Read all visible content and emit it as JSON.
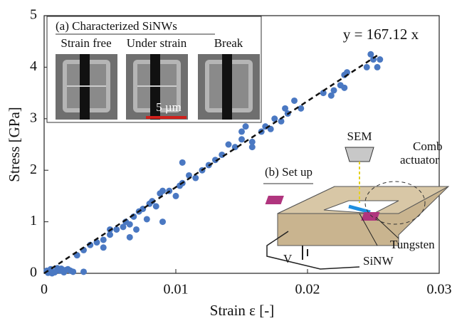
{
  "chart_data": {
    "type": "scatter",
    "xlabel": "Strain ε [-]",
    "ylabel": "Stress [GPa]",
    "xlim": [
      0,
      0.03
    ],
    "xticks": [
      0,
      0.01,
      0.02,
      0.03
    ],
    "ylim": [
      0,
      5
    ],
    "yticks": [
      0,
      1,
      2,
      3,
      4,
      5
    ],
    "color": "#4a78c2",
    "x": [
      0.0002,
      0.0005,
      0.0008,
      0.001,
      0.0012,
      0.0015,
      0.0018,
      0.002,
      0.0022,
      0.003,
      0.0003,
      0.0006,
      0.0013,
      0.0016,
      0.0025,
      0.003,
      0.0035,
      0.004,
      0.0045,
      0.0045,
      0.005,
      0.005,
      0.0055,
      0.006,
      0.0062,
      0.0065,
      0.0065,
      0.0068,
      0.007,
      0.0072,
      0.0075,
      0.0078,
      0.008,
      0.0082,
      0.0085,
      0.0088,
      0.009,
      0.009,
      0.0095,
      0.01,
      0.0103,
      0.0105,
      0.0105,
      0.011,
      0.0115,
      0.012,
      0.0125,
      0.013,
      0.0135,
      0.014,
      0.0145,
      0.015,
      0.015,
      0.0153,
      0.0158,
      0.0158,
      0.0165,
      0.0168,
      0.0172,
      0.0175,
      0.018,
      0.0183,
      0.0185,
      0.019,
      0.0195,
      0.0212,
      0.0218,
      0.022,
      0.0225,
      0.0228,
      0.023,
      0.0228,
      0.0245,
      0.0248,
      0.025,
      0.0253,
      0.0255
    ],
    "values": [
      0.05,
      0.08,
      0.02,
      0.1,
      0.05,
      0.02,
      0.08,
      0.05,
      0.03,
      0.03,
      0.01,
      0.0,
      0.09,
      0.06,
      0.35,
      0.45,
      0.55,
      0.6,
      0.5,
      0.65,
      0.75,
      0.85,
      0.85,
      0.9,
      1.0,
      0.95,
      0.7,
      1.1,
      0.85,
      1.2,
      1.25,
      1.05,
      1.35,
      1.4,
      1.3,
      1.55,
      1.0,
      1.6,
      1.6,
      1.5,
      1.7,
      1.75,
      2.15,
      1.9,
      1.85,
      2.0,
      2.1,
      2.2,
      2.3,
      2.5,
      2.45,
      2.6,
      2.75,
      2.85,
      2.45,
      2.55,
      2.75,
      2.85,
      2.8,
      3.0,
      2.95,
      3.2,
      3.1,
      3.35,
      3.2,
      3.5,
      3.45,
      3.55,
      3.65,
      3.85,
      3.9,
      3.6,
      4.0,
      4.25,
      4.15,
      4.0,
      4.15
    ],
    "fit": {
      "slope": 167.12,
      "label": "y = 167.12 x"
    },
    "inset_a": {
      "title": "(a) Characterized SiNWs",
      "panels": [
        "Strain free",
        "Under strain",
        "Break"
      ],
      "scale_bar": "5 µm"
    },
    "inset_b": {
      "title": "(b) Set up",
      "labels": [
        "SEM",
        "Comb",
        "actuator",
        "Tungsten",
        "SiNW",
        "V"
      ]
    }
  }
}
